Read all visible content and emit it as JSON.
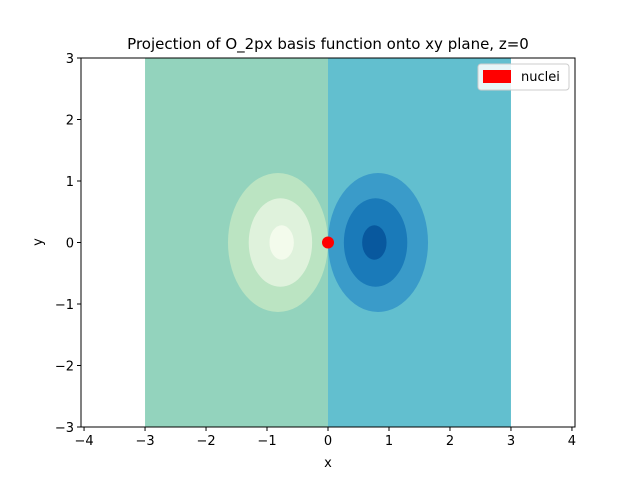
{
  "chart_data": {
    "type": "contour",
    "title": "Projection of O_2px basis function onto xy plane, z=0",
    "xlabel": "x",
    "ylabel": "y",
    "xlim": [
      -4.05,
      4.05
    ],
    "ylim": [
      -3,
      3
    ],
    "xticks": [
      -4,
      -3,
      -2,
      -1,
      0,
      1,
      2,
      3,
      4
    ],
    "yticks": [
      -3,
      -2,
      -1,
      0,
      1,
      2,
      3
    ],
    "tick_labels": {
      "x": [
        "−4",
        "−3",
        "−2",
        "−1",
        "0",
        "1",
        "2",
        "3",
        "4"
      ],
      "y": [
        "−3",
        "−2",
        "−1",
        "0",
        "1",
        "2",
        "3"
      ]
    },
    "grid": false,
    "legend": {
      "placement": "top-right",
      "entries": [
        {
          "label": "nuclei",
          "color": "#ff0000"
        }
      ]
    },
    "colormap": "GnBu",
    "data_extent": {
      "x": [
        -3,
        3
      ],
      "y": [
        -3,
        3
      ]
    },
    "fill_regions": [
      {
        "x_range": [
          -3,
          0
        ],
        "color": "#93d3bd"
      },
      {
        "x_range": [
          0,
          3
        ],
        "color": "#62bfcf"
      }
    ],
    "contours": [
      {
        "center": [
          -0.82,
          0
        ],
        "rx": 0.82,
        "ry": 1.13,
        "color": "#bbe4c2"
      },
      {
        "center": [
          -0.78,
          0
        ],
        "rx": 0.52,
        "ry": 0.72,
        "color": "#dff2dc"
      },
      {
        "center": [
          -0.76,
          0
        ],
        "rx": 0.2,
        "ry": 0.28,
        "color": "#f3fbec"
      },
      {
        "center": [
          0.82,
          0
        ],
        "rx": 0.82,
        "ry": 1.13,
        "color": "#3a9bc9"
      },
      {
        "center": [
          0.78,
          0
        ],
        "rx": 0.52,
        "ry": 0.72,
        "color": "#1a7ab9"
      },
      {
        "center": [
          0.76,
          0
        ],
        "rx": 0.2,
        "ry": 0.28,
        "color": "#08589e"
      }
    ],
    "nuclei": [
      {
        "x": 0,
        "y": 0,
        "color": "#ff0000"
      }
    ]
  }
}
